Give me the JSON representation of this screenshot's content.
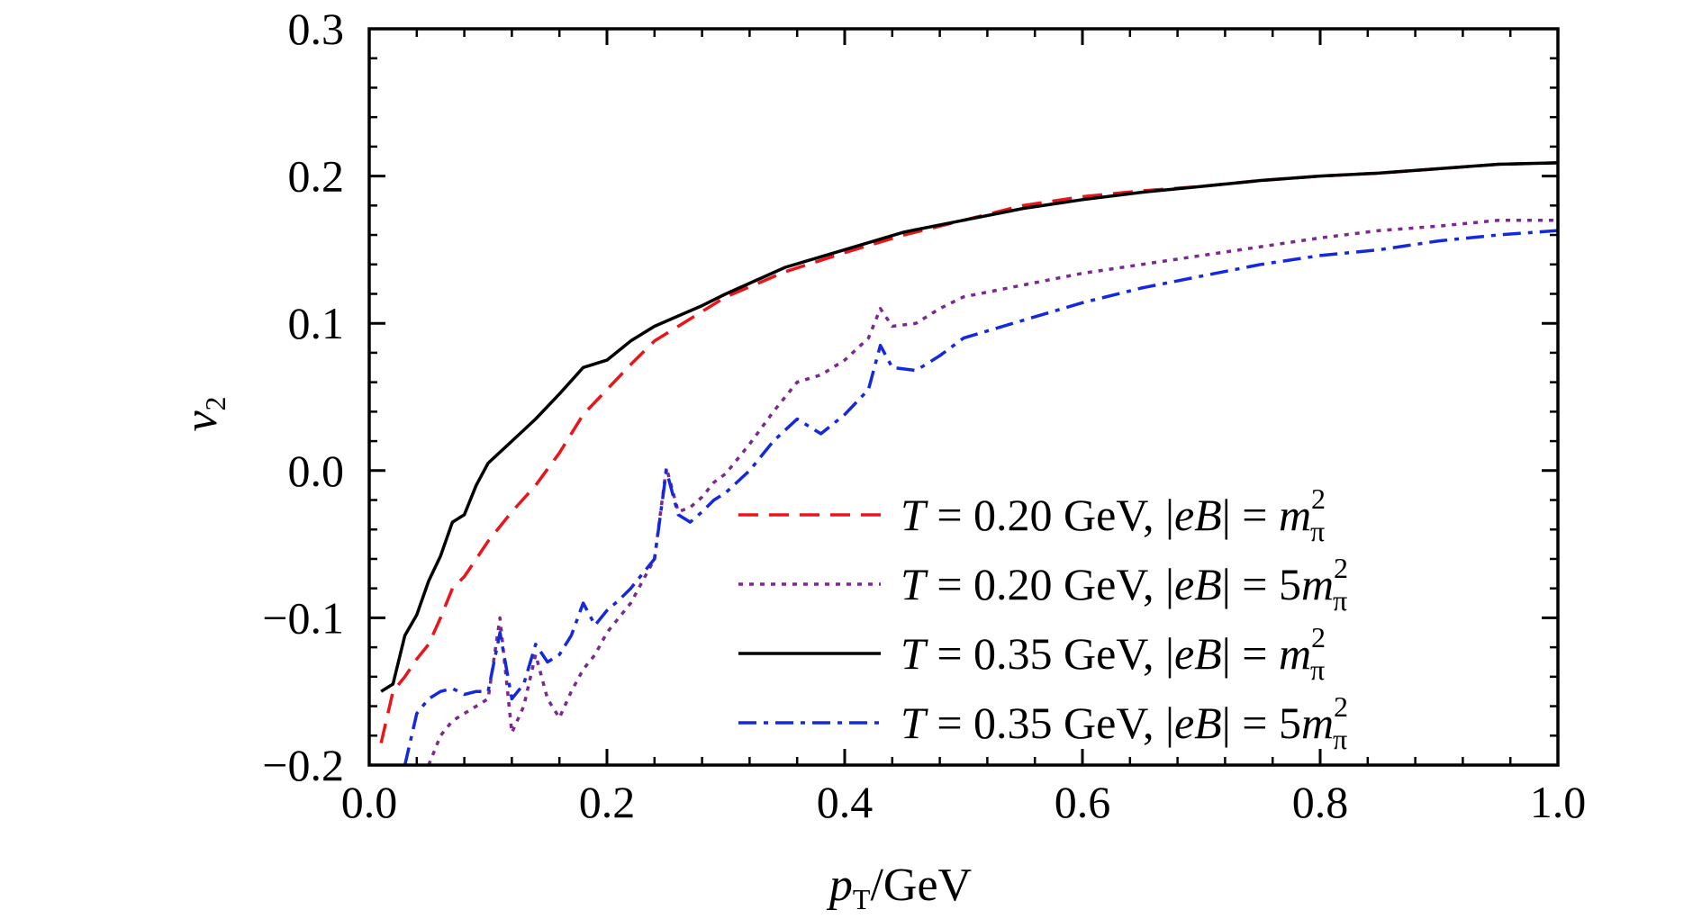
{
  "chart_data": {
    "type": "line",
    "xlabel": {
      "main": "p",
      "sub": "T",
      "rest": "/GeV"
    },
    "ylabel": {
      "main": "v",
      "sub": "2"
    },
    "xlim": [
      0.0,
      1.0
    ],
    "ylim": [
      -0.2,
      0.3
    ],
    "xticks": [
      {
        "value": 0.0,
        "label": "0.0"
      },
      {
        "value": 0.2,
        "label": "0.2"
      },
      {
        "value": 0.4,
        "label": "0.4"
      },
      {
        "value": 0.6,
        "label": "0.6"
      },
      {
        "value": 0.8,
        "label": "0.8"
      },
      {
        "value": 1.0,
        "label": "1.0"
      }
    ],
    "yticks": [
      {
        "value": -0.2,
        "label": "−0.2"
      },
      {
        "value": -0.1,
        "label": "−0.1"
      },
      {
        "value": 0.0,
        "label": "0.0"
      },
      {
        "value": 0.1,
        "label": "0.1"
      },
      {
        "value": 0.2,
        "label": "0.2"
      },
      {
        "value": 0.3,
        "label": "0.3"
      }
    ],
    "legend_position": "lower-right",
    "series": [
      {
        "label": {
          "T": "0.20",
          "eB": "m"
        },
        "color": "#e8161b",
        "style": "dashed",
        "x": [
          0.01,
          0.02,
          0.03,
          0.04,
          0.05,
          0.06,
          0.07,
          0.08,
          0.09,
          0.1,
          0.12,
          0.14,
          0.16,
          0.18,
          0.2,
          0.22,
          0.24,
          0.26,
          0.28,
          0.3,
          0.35,
          0.4,
          0.45,
          0.5,
          0.55,
          0.6,
          0.65,
          0.7,
          0.75,
          0.8,
          0.85,
          0.9,
          0.95,
          1.0
        ],
        "y": [
          -0.185,
          -0.15,
          -0.14,
          -0.128,
          -0.118,
          -0.1,
          -0.08,
          -0.072,
          -0.06,
          -0.048,
          -0.028,
          -0.01,
          0.012,
          0.038,
          0.055,
          0.072,
          0.088,
          0.098,
          0.108,
          0.118,
          0.135,
          0.148,
          0.16,
          0.17,
          0.18,
          0.186,
          0.19,
          0.193,
          0.197,
          0.2,
          0.202,
          0.205,
          0.208,
          0.209
        ]
      },
      {
        "label": {
          "T": "0.20",
          "eB": "5m"
        },
        "color": "#7a2a8e",
        "style": "dotted",
        "x": [
          0.05,
          0.06,
          0.07,
          0.08,
          0.09,
          0.1,
          0.11,
          0.12,
          0.13,
          0.14,
          0.15,
          0.16,
          0.17,
          0.18,
          0.19,
          0.2,
          0.21,
          0.22,
          0.23,
          0.24,
          0.25,
          0.26,
          0.27,
          0.28,
          0.29,
          0.3,
          0.32,
          0.34,
          0.36,
          0.38,
          0.4,
          0.42,
          0.43,
          0.44,
          0.46,
          0.48,
          0.5,
          0.55,
          0.6,
          0.65,
          0.7,
          0.75,
          0.8,
          0.85,
          0.9,
          0.95,
          1.0
        ],
        "y": [
          -0.2,
          -0.18,
          -0.17,
          -0.165,
          -0.16,
          -0.155,
          -0.1,
          -0.178,
          -0.16,
          -0.125,
          -0.155,
          -0.168,
          -0.15,
          -0.135,
          -0.125,
          -0.11,
          -0.1,
          -0.09,
          -0.075,
          -0.06,
          0.002,
          -0.028,
          -0.025,
          -0.018,
          -0.008,
          -0.002,
          0.018,
          0.04,
          0.06,
          0.065,
          0.075,
          0.09,
          0.11,
          0.098,
          0.1,
          0.11,
          0.118,
          0.126,
          0.134,
          0.14,
          0.146,
          0.152,
          0.158,
          0.163,
          0.166,
          0.17,
          0.17
        ]
      },
      {
        "label": {
          "T": "0.35",
          "eB": "m"
        },
        "color": "#000000",
        "style": "solid",
        "x": [
          0.01,
          0.02,
          0.03,
          0.04,
          0.05,
          0.06,
          0.07,
          0.08,
          0.09,
          0.1,
          0.12,
          0.14,
          0.16,
          0.18,
          0.2,
          0.22,
          0.24,
          0.26,
          0.28,
          0.3,
          0.35,
          0.4,
          0.45,
          0.5,
          0.55,
          0.6,
          0.65,
          0.7,
          0.75,
          0.8,
          0.85,
          0.9,
          0.95,
          1.0
        ],
        "y": [
          -0.15,
          -0.145,
          -0.112,
          -0.098,
          -0.075,
          -0.058,
          -0.035,
          -0.03,
          -0.01,
          0.005,
          0.02,
          0.035,
          0.052,
          0.07,
          0.075,
          0.088,
          0.098,
          0.105,
          0.112,
          0.12,
          0.138,
          0.15,
          0.162,
          0.17,
          0.178,
          0.184,
          0.189,
          0.193,
          0.197,
          0.2,
          0.202,
          0.205,
          0.208,
          0.209
        ]
      },
      {
        "label": {
          "T": "0.35",
          "eB": "5m"
        },
        "color": "#1428e0",
        "style": "dashdot",
        "x": [
          0.03,
          0.04,
          0.05,
          0.06,
          0.07,
          0.08,
          0.09,
          0.1,
          0.11,
          0.12,
          0.13,
          0.14,
          0.15,
          0.16,
          0.17,
          0.18,
          0.19,
          0.2,
          0.21,
          0.22,
          0.23,
          0.24,
          0.25,
          0.26,
          0.27,
          0.28,
          0.29,
          0.3,
          0.32,
          0.34,
          0.36,
          0.38,
          0.4,
          0.42,
          0.43,
          0.44,
          0.46,
          0.48,
          0.5,
          0.55,
          0.6,
          0.65,
          0.7,
          0.75,
          0.8,
          0.85,
          0.9,
          0.95,
          1.0
        ],
        "y": [
          -0.2,
          -0.165,
          -0.155,
          -0.15,
          -0.148,
          -0.152,
          -0.15,
          -0.15,
          -0.11,
          -0.155,
          -0.145,
          -0.118,
          -0.13,
          -0.125,
          -0.112,
          -0.09,
          -0.105,
          -0.095,
          -0.088,
          -0.08,
          -0.07,
          -0.06,
          0.0,
          -0.03,
          -0.035,
          -0.028,
          -0.02,
          -0.015,
          0.0,
          0.02,
          0.035,
          0.025,
          0.038,
          0.055,
          0.085,
          0.07,
          0.068,
          0.078,
          0.09,
          0.102,
          0.114,
          0.124,
          0.132,
          0.14,
          0.146,
          0.15,
          0.156,
          0.16,
          0.163
        ]
      }
    ]
  }
}
